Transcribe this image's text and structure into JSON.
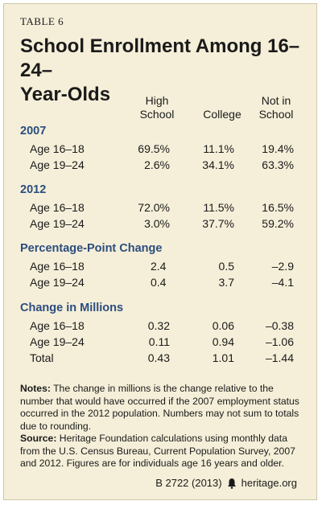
{
  "table_label": "TABLE 6",
  "title": "School Enrollment Among 16–24–Year-Olds",
  "title_lines": [
    "School Enrollment Among 16–24–",
    "Year-Olds"
  ],
  "columns": {
    "high_school": [
      "High",
      "School"
    ],
    "college": "College",
    "not_in_school": [
      "Not in",
      "School"
    ]
  },
  "sections": [
    {
      "heading": "2007",
      "rows": [
        {
          "label": "Age 16–18",
          "high_school": "69.5%",
          "college": "11.1%",
          "not_in_school": "19.4%"
        },
        {
          "label": "Age 19–24",
          "high_school": "2.6%",
          "college": "34.1%",
          "not_in_school": "63.3%"
        }
      ]
    },
    {
      "heading": "2012",
      "rows": [
        {
          "label": "Age 16–18",
          "high_school": "72.0%",
          "college": "11.5%",
          "not_in_school": "16.5%"
        },
        {
          "label": "Age 19–24",
          "high_school": "3.0%",
          "college": "37.7%",
          "not_in_school": "59.2%"
        }
      ]
    },
    {
      "heading": "Percentage-Point Change",
      "rows": [
        {
          "label": "Age 16–18",
          "high_school": "2.4",
          "college": "0.5",
          "not_in_school": "–2.9"
        },
        {
          "label": "Age 19–24",
          "high_school": "0.4",
          "college": "3.7",
          "not_in_school": "–4.1"
        }
      ]
    },
    {
      "heading": "Change in Millions",
      "rows": [
        {
          "label": "Age 16–18",
          "high_school": "0.32",
          "college": "0.06",
          "not_in_school": "–0.38"
        },
        {
          "label": "Age 19–24",
          "high_school": "0.11",
          "college": "0.94",
          "not_in_school": "–1.06"
        },
        {
          "label": "Total",
          "high_school": "0.43",
          "college": "1.01",
          "not_in_school": "–1.44"
        }
      ]
    }
  ],
  "notes": {
    "notes_label": "Notes:",
    "notes_text": "The change in millions is the change relative to the number that would have occurred if the 2007 employment status occurred in the 2012 population. Numbers may not sum to totals due to rounding.",
    "source_label": "Source:",
    "source_text": "Heritage Foundation calculations using monthly data from the U.S. Census Bureau, Current Population Survey, 2007 and 2012. Figures are for individuals age 16 years and older."
  },
  "footer": {
    "citation": "B 2722 (2013)",
    "icon": "bell-icon",
    "site": "heritage.org"
  },
  "colors": {
    "background": "#f5efd9",
    "section_heading": "#2b4d7e",
    "text": "#1a1a1a"
  }
}
